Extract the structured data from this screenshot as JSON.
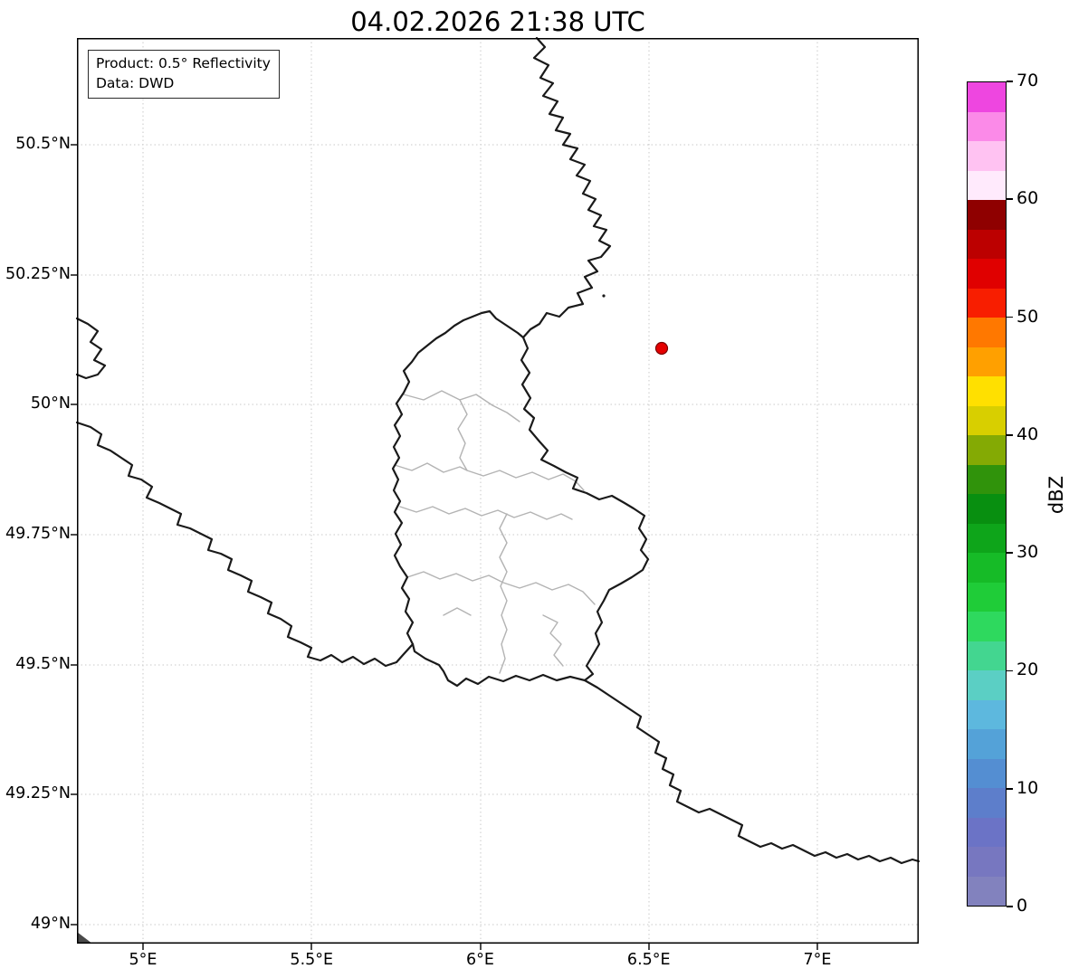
{
  "title": "04.02.2026 21:38 UTC",
  "info_box": {
    "product": "Product: 0.5° Reflectivity",
    "data_source": "Data: DWD"
  },
  "map": {
    "x_tick_labels": [
      "5°E",
      "5.5°E",
      "6°E",
      "6.5°E",
      "7°E"
    ],
    "y_tick_labels": [
      "50.5°N",
      "50.25°N",
      "50°N",
      "49.75°N",
      "49.5°N",
      "49.25°N",
      "49°N"
    ],
    "marker": {
      "description": "radar site marker",
      "color": "#e50000",
      "outline_color": "#7a0000"
    },
    "border_color": "#1a1a1a",
    "district_border_color": "#b3b3b3",
    "grid_color": "#c9c9c9"
  },
  "colorbar": {
    "label": "dBZ",
    "min": 0,
    "max": 70,
    "tick_labels": [
      "70",
      "60",
      "50",
      "40",
      "30",
      "20",
      "10",
      "0"
    ],
    "segment_colors_top_to_bottom": [
      "#ee46e0",
      "#fb8ae8",
      "#ffc2f2",
      "#ffeafc",
      "#8f0000",
      "#bc0000",
      "#e00000",
      "#f81e00",
      "#ff7800",
      "#ffa000",
      "#ffe000",
      "#d8cf00",
      "#84aa04",
      "#30930b",
      "#088f10",
      "#0ea51a",
      "#16bb27",
      "#1fcc38",
      "#2ed95e",
      "#43d690",
      "#5bcfc4",
      "#5db8de",
      "#54a2d8",
      "#548ed2",
      "#5d7ecb",
      "#6b73c6",
      "#7777c0",
      "#8282be"
    ]
  }
}
